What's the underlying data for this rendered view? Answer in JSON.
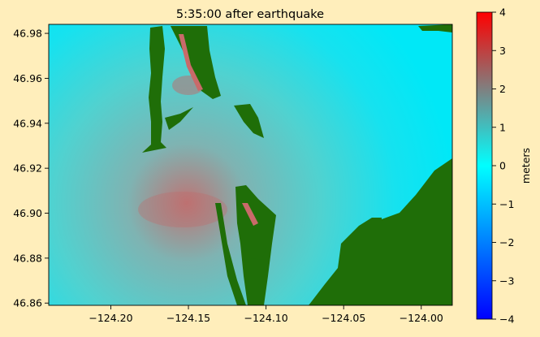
{
  "chart_data": {
    "type": "heatmap",
    "title": "5:35:00 after earthquake",
    "xlabel": "",
    "ylabel": "",
    "xlim": [
      -124.24,
      -123.98
    ],
    "ylim": [
      46.859,
      46.984
    ],
    "xticks": [
      -124.2,
      -124.15,
      -124.1,
      -124.05,
      -124.0
    ],
    "xtick_labels": [
      "−124.20",
      "−124.15",
      "−124.10",
      "−124.05",
      "−124.00"
    ],
    "yticks": [
      46.86,
      46.88,
      46.9,
      46.92,
      46.94,
      46.96,
      46.98
    ],
    "ytick_labels": [
      "46.86",
      "46.88",
      "46.90",
      "46.92",
      "46.94",
      "46.96",
      "46.98"
    ],
    "colorbar": {
      "label": "meters",
      "range": [
        -4,
        4
      ],
      "ticks": [
        4,
        3,
        2,
        1,
        0,
        -1,
        -2,
        -3,
        -4
      ],
      "tick_labels": [
        "4",
        "3",
        "2",
        "1",
        "0",
        "−1",
        "−2",
        "−3",
        "−4"
      ],
      "colors": [
        "#0000ff",
        "#00ffff",
        "#ff0000"
      ]
    },
    "colors": {
      "land": "#1f6e08",
      "water_high": "#c96a6a",
      "water_mid": "#4fd2cf",
      "water_low": "#00e7f7"
    }
  }
}
